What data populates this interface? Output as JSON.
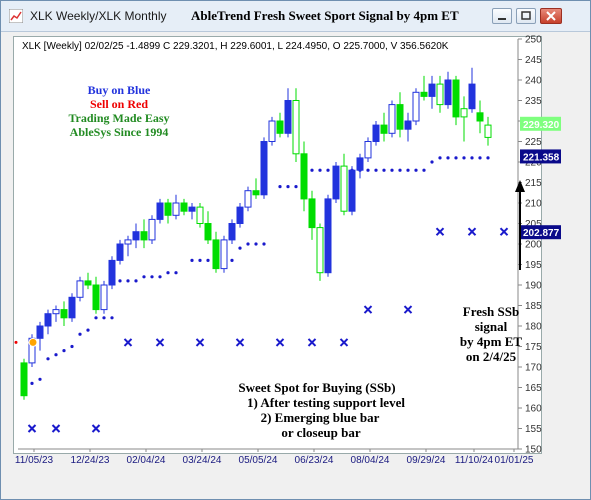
{
  "window": {
    "title": "XLK Weekly/XLK Monthly"
  },
  "chart_title": "AbleTrend Fresh Sweet Sport Signal by 4pm ET",
  "info_line": "XLK [Weekly] 02/02/25  -1.4899 C 229.3201, H 229.6001, L 224.4950, O 225.7000, V 356.5620K",
  "legend": {
    "buy": "Buy on Blue",
    "sell": "Sell on Red",
    "tagline1": "Trading Made Easy",
    "tagline2": "AbleSys Since 1994"
  },
  "annotation_fresh": [
    "Fresh SSb",
    "signal",
    "by 4pm ET",
    "on 2/4/25"
  ],
  "annotation_sweet": [
    "Sweet Spot for Buying (SSb)",
    "1) After testing support level",
    "2) Emerging blue bar",
    "or closeup bar"
  ],
  "price_tags": [
    {
      "value": "229.320",
      "bg": "#7fff7f",
      "fg": "#ffffff"
    },
    {
      "value": "221.358",
      "bg": "#0a0a8a",
      "fg": "#ffffff"
    },
    {
      "value": "202.877",
      "bg": "#0a0a8a",
      "fg": "#ffffff"
    }
  ],
  "colors": {
    "blue": "#2233dd",
    "green": "#00dd00",
    "red": "#ee0000",
    "text_green": "#228b22",
    "dots": "#1a1acc"
  },
  "chart_data": {
    "type": "ohlc-candlestick",
    "y_ticks": [
      150,
      155,
      160,
      165,
      170,
      175,
      180,
      185,
      190,
      195,
      200,
      205,
      210,
      215,
      220,
      225,
      230,
      235,
      240,
      245,
      250
    ],
    "ylim": [
      150,
      250
    ],
    "x_ticks": [
      "11/05/23",
      "12/24/23",
      "02/04/24",
      "03/24/24",
      "05/05/24",
      "06/23/24",
      "08/04/24",
      "09/29/24",
      "11/10/24",
      "01/01/25"
    ],
    "candles": [
      {
        "o": 163,
        "h": 172,
        "l": 162,
        "c": 171,
        "col": "green"
      },
      {
        "o": 171,
        "h": 178,
        "l": 170,
        "c": 177,
        "col": "blue"
      },
      {
        "o": 177,
        "h": 181,
        "l": 174,
        "c": 180,
        "col": "blue"
      },
      {
        "o": 180,
        "h": 184,
        "l": 178,
        "c": 183,
        "col": "blue"
      },
      {
        "o": 183,
        "h": 185,
        "l": 181,
        "c": 184,
        "col": "blue"
      },
      {
        "o": 184,
        "h": 186,
        "l": 180,
        "c": 182,
        "col": "green"
      },
      {
        "o": 182,
        "h": 188,
        "l": 181,
        "c": 187,
        "col": "blue"
      },
      {
        "o": 187,
        "h": 192,
        "l": 186,
        "c": 191,
        "col": "blue"
      },
      {
        "o": 191,
        "h": 193,
        "l": 189,
        "c": 190,
        "col": "green"
      },
      {
        "o": 190,
        "h": 192,
        "l": 183,
        "c": 184,
        "col": "green"
      },
      {
        "o": 184,
        "h": 191,
        "l": 183,
        "c": 190,
        "col": "blue"
      },
      {
        "o": 190,
        "h": 197,
        "l": 189,
        "c": 196,
        "col": "blue"
      },
      {
        "o": 196,
        "h": 201,
        "l": 195,
        "c": 200,
        "col": "blue"
      },
      {
        "o": 200,
        "h": 202,
        "l": 197,
        "c": 201,
        "col": "blue"
      },
      {
        "o": 201,
        "h": 205,
        "l": 199,
        "c": 203,
        "col": "blue"
      },
      {
        "o": 203,
        "h": 206,
        "l": 199,
        "c": 201,
        "col": "green"
      },
      {
        "o": 201,
        "h": 207,
        "l": 200,
        "c": 206,
        "col": "blue"
      },
      {
        "o": 206,
        "h": 211,
        "l": 205,
        "c": 210,
        "col": "blue"
      },
      {
        "o": 210,
        "h": 211,
        "l": 205,
        "c": 207,
        "col": "green"
      },
      {
        "o": 207,
        "h": 212,
        "l": 206,
        "c": 210,
        "col": "blue"
      },
      {
        "o": 210,
        "h": 211,
        "l": 207,
        "c": 208,
        "col": "green"
      },
      {
        "o": 208,
        "h": 210,
        "l": 206,
        "c": 209,
        "col": "blue"
      },
      {
        "o": 209,
        "h": 210,
        "l": 204,
        "c": 205,
        "col": "green"
      },
      {
        "o": 205,
        "h": 208,
        "l": 200,
        "c": 201,
        "col": "green"
      },
      {
        "o": 201,
        "h": 203,
        "l": 193,
        "c": 194,
        "col": "green"
      },
      {
        "o": 194,
        "h": 202,
        "l": 193,
        "c": 201,
        "col": "blue"
      },
      {
        "o": 201,
        "h": 206,
        "l": 200,
        "c": 205,
        "col": "blue"
      },
      {
        "o": 205,
        "h": 210,
        "l": 204,
        "c": 209,
        "col": "blue"
      },
      {
        "o": 209,
        "h": 214,
        "l": 208,
        "c": 213,
        "col": "blue"
      },
      {
        "o": 213,
        "h": 216,
        "l": 211,
        "c": 212,
        "col": "green"
      },
      {
        "o": 212,
        "h": 226,
        "l": 211,
        "c": 225,
        "col": "blue"
      },
      {
        "o": 225,
        "h": 231,
        "l": 224,
        "c": 230,
        "col": "blue"
      },
      {
        "o": 230,
        "h": 232,
        "l": 226,
        "c": 227,
        "col": "green"
      },
      {
        "o": 227,
        "h": 238,
        "l": 226,
        "c": 235,
        "col": "blue"
      },
      {
        "o": 235,
        "h": 238,
        "l": 220,
        "c": 222,
        "col": "green"
      },
      {
        "o": 222,
        "h": 225,
        "l": 208,
        "c": 211,
        "col": "green"
      },
      {
        "o": 211,
        "h": 213,
        "l": 201,
        "c": 204,
        "col": "green"
      },
      {
        "o": 204,
        "h": 205,
        "l": 191,
        "c": 193,
        "col": "green"
      },
      {
        "o": 193,
        "h": 212,
        "l": 192,
        "c": 211,
        "col": "blue"
      },
      {
        "o": 211,
        "h": 220,
        "l": 210,
        "c": 219,
        "col": "blue"
      },
      {
        "o": 219,
        "h": 222,
        "l": 207,
        "c": 208,
        "col": "green"
      },
      {
        "o": 208,
        "h": 219,
        "l": 207,
        "c": 218,
        "col": "blue"
      },
      {
        "o": 218,
        "h": 222,
        "l": 216,
        "c": 221,
        "col": "blue"
      },
      {
        "o": 221,
        "h": 226,
        "l": 220,
        "c": 225,
        "col": "blue"
      },
      {
        "o": 225,
        "h": 230,
        "l": 224,
        "c": 229,
        "col": "blue"
      },
      {
        "o": 229,
        "h": 232,
        "l": 225,
        "c": 227,
        "col": "green"
      },
      {
        "o": 227,
        "h": 235,
        "l": 226,
        "c": 234,
        "col": "blue"
      },
      {
        "o": 234,
        "h": 237,
        "l": 226,
        "c": 228,
        "col": "green"
      },
      {
        "o": 228,
        "h": 232,
        "l": 225,
        "c": 230,
        "col": "blue"
      },
      {
        "o": 230,
        "h": 238,
        "l": 229,
        "c": 237,
        "col": "blue"
      },
      {
        "o": 237,
        "h": 241,
        "l": 235,
        "c": 236,
        "col": "green"
      },
      {
        "o": 236,
        "h": 241,
        "l": 233,
        "c": 239,
        "col": "blue"
      },
      {
        "o": 239,
        "h": 241,
        "l": 232,
        "c": 234,
        "col": "green"
      },
      {
        "o": 234,
        "h": 242,
        "l": 233,
        "c": 240,
        "col": "blue"
      },
      {
        "o": 240,
        "h": 241,
        "l": 229,
        "c": 231,
        "col": "green"
      },
      {
        "o": 231,
        "h": 236,
        "l": 225,
        "c": 233,
        "col": "green"
      },
      {
        "o": 233,
        "h": 243,
        "l": 232,
        "c": 239,
        "col": "blue"
      },
      {
        "o": 232,
        "h": 235,
        "l": 227,
        "c": 230,
        "col": "green"
      },
      {
        "o": 226,
        "h": 231,
        "l": 224,
        "c": 229,
        "col": "green"
      }
    ],
    "support_dots": [
      {
        "i": 1,
        "v": 166
      },
      {
        "i": 2,
        "v": 167
      },
      {
        "i": 3,
        "v": 172
      },
      {
        "i": 4,
        "v": 173
      },
      {
        "i": 5,
        "v": 174
      },
      {
        "i": 6,
        "v": 175
      },
      {
        "i": 7,
        "v": 178
      },
      {
        "i": 8,
        "v": 179
      },
      {
        "i": 9,
        "v": 182
      },
      {
        "i": 10,
        "v": 182
      },
      {
        "i": 11,
        "v": 182
      },
      {
        "i": 12,
        "v": 191
      },
      {
        "i": 13,
        "v": 191
      },
      {
        "i": 14,
        "v": 191
      },
      {
        "i": 15,
        "v": 192
      },
      {
        "i": 16,
        "v": 192
      },
      {
        "i": 17,
        "v": 192
      },
      {
        "i": 18,
        "v": 193
      },
      {
        "i": 19,
        "v": 193
      },
      {
        "i": 21,
        "v": 196
      },
      {
        "i": 22,
        "v": 196
      },
      {
        "i": 23,
        "v": 196
      },
      {
        "i": 24,
        "v": 196
      },
      {
        "i": 25,
        "v": 196
      },
      {
        "i": 26,
        "v": 196
      },
      {
        "i": 27,
        "v": 199
      },
      {
        "i": 28,
        "v": 200
      },
      {
        "i": 29,
        "v": 200
      },
      {
        "i": 30,
        "v": 200
      },
      {
        "i": 32,
        "v": 214
      },
      {
        "i": 33,
        "v": 214
      },
      {
        "i": 34,
        "v": 214
      },
      {
        "i": 35,
        "v": 218
      },
      {
        "i": 36,
        "v": 218
      },
      {
        "i": 37,
        "v": 218
      },
      {
        "i": 38,
        "v": 218
      },
      {
        "i": 39,
        "v": 218
      },
      {
        "i": 40,
        "v": 218
      },
      {
        "i": 41,
        "v": 218
      },
      {
        "i": 42,
        "v": 218
      },
      {
        "i": 43,
        "v": 218
      },
      {
        "i": 44,
        "v": 218
      },
      {
        "i": 45,
        "v": 218
      },
      {
        "i": 46,
        "v": 218
      },
      {
        "i": 47,
        "v": 218
      },
      {
        "i": 48,
        "v": 218
      },
      {
        "i": 49,
        "v": 218
      },
      {
        "i": 50,
        "v": 218
      },
      {
        "i": 51,
        "v": 220
      },
      {
        "i": 52,
        "v": 221
      },
      {
        "i": 53,
        "v": 221
      },
      {
        "i": 54,
        "v": 221
      },
      {
        "i": 55,
        "v": 221
      },
      {
        "i": 56,
        "v": 221
      },
      {
        "i": 57,
        "v": 221
      },
      {
        "i": 58,
        "v": 221
      }
    ],
    "x_marks": [
      {
        "i": 1,
        "v": 155
      },
      {
        "i": 4,
        "v": 155
      },
      {
        "i": 9,
        "v": 155
      },
      {
        "i": 13,
        "v": 176
      },
      {
        "i": 17,
        "v": 176
      },
      {
        "i": 22,
        "v": 176
      },
      {
        "i": 27,
        "v": 176
      },
      {
        "i": 32,
        "v": 176
      },
      {
        "i": 36,
        "v": 176
      },
      {
        "i": 40,
        "v": 176
      },
      {
        "i": 43,
        "v": 184
      },
      {
        "i": 48,
        "v": 184
      },
      {
        "i": 52,
        "v": 203
      },
      {
        "i": 56,
        "v": 203
      },
      {
        "i": 60,
        "v": 203
      }
    ]
  }
}
